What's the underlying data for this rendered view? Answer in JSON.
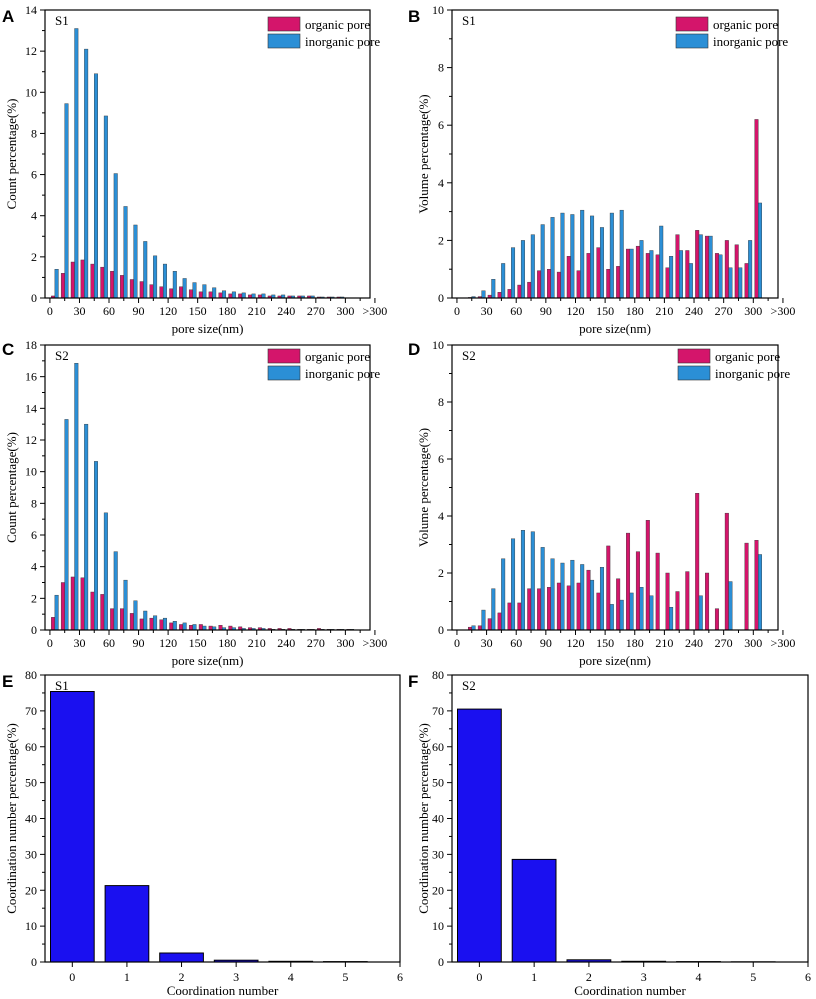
{
  "chart_data": [
    {
      "type": "bar",
      "panel_label": "A",
      "sample_label": "S1",
      "xlabel": "pore size(nm)",
      "ylabel": "Count percentage(%)",
      "ylim": [
        0,
        14
      ],
      "yticks": [
        0,
        2,
        4,
        6,
        8,
        10,
        12,
        14
      ],
      "xticks": [
        "0",
        "30",
        "60",
        "90",
        "120",
        "150",
        "180",
        "210",
        "240",
        "270",
        "300",
        ">300"
      ],
      "x": [
        5,
        15,
        25,
        35,
        45,
        55,
        65,
        75,
        85,
        95,
        105,
        115,
        125,
        135,
        145,
        155,
        165,
        175,
        185,
        195,
        205,
        215,
        225,
        235,
        245,
        255,
        265,
        275,
        285,
        295
      ],
      "legend_position": "top-right",
      "series": [
        {
          "name": "organic pore",
          "color": "#d4156b",
          "values": [
            0.1,
            1.2,
            1.75,
            1.85,
            1.65,
            1.5,
            1.3,
            1.1,
            0.9,
            0.8,
            0.65,
            0.55,
            0.45,
            0.55,
            0.4,
            0.3,
            0.3,
            0.25,
            0.2,
            0.2,
            0.15,
            0.15,
            0.1,
            0.1,
            0.1,
            0.1,
            0.1,
            0.05,
            0.05,
            0.05
          ]
        },
        {
          "name": "inorganic pore",
          "color": "#2b8fd6",
          "values": [
            1.4,
            9.45,
            13.1,
            12.1,
            10.9,
            8.85,
            6.05,
            4.45,
            3.55,
            2.75,
            2.05,
            1.65,
            1.3,
            0.95,
            0.75,
            0.65,
            0.5,
            0.35,
            0.3,
            0.25,
            0.2,
            0.2,
            0.15,
            0.15,
            0.1,
            0.1,
            0.1,
            0.05,
            0.05,
            0.05
          ]
        }
      ]
    },
    {
      "type": "bar",
      "panel_label": "B",
      "sample_label": "S1",
      "xlabel": "pore size(nm)",
      "ylabel": "Volume percentage(%)",
      "ylim": [
        0,
        10
      ],
      "yticks": [
        0,
        2,
        4,
        6,
        8,
        10
      ],
      "xticks": [
        "0",
        "30",
        "60",
        "90",
        "120",
        "150",
        "180",
        "210",
        "240",
        "270",
        "300",
        ">300"
      ],
      "x": [
        5,
        15,
        25,
        35,
        45,
        55,
        65,
        75,
        85,
        95,
        105,
        115,
        125,
        135,
        145,
        155,
        165,
        175,
        185,
        195,
        205,
        215,
        225,
        235,
        245,
        255,
        265,
        275,
        285,
        295,
        305
      ],
      "legend_position": "top-right",
      "series": [
        {
          "name": "organic pore",
          "color": "#d4156b",
          "values": [
            0,
            0.02,
            0.05,
            0.1,
            0.2,
            0.3,
            0.45,
            0.55,
            0.95,
            1.0,
            0.9,
            1.45,
            0.95,
            1.55,
            1.75,
            1.0,
            1.1,
            1.7,
            1.8,
            1.55,
            1.5,
            1.05,
            2.2,
            1.65,
            2.35,
            2.15,
            1.55,
            2.0,
            1.85,
            1.2,
            6.2
          ]
        },
        {
          "name": "inorganic pore",
          "color": "#2b8fd6",
          "values": [
            0,
            0.05,
            0.25,
            0.65,
            1.2,
            1.75,
            2.0,
            2.2,
            2.55,
            2.8,
            2.95,
            2.9,
            3.05,
            2.85,
            2.45,
            2.95,
            3.05,
            1.7,
            2.0,
            1.65,
            2.5,
            1.45,
            1.65,
            1.2,
            2.2,
            2.15,
            1.5,
            1.05,
            1.05,
            2.0,
            3.3
          ]
        }
      ]
    },
    {
      "type": "bar",
      "panel_label": "C",
      "sample_label": "S2",
      "xlabel": "pore size(nm)",
      "ylabel": "Count percentage(%)",
      "ylim": [
        0,
        18
      ],
      "yticks": [
        0,
        2,
        4,
        6,
        8,
        10,
        12,
        14,
        16,
        18
      ],
      "xticks": [
        "0",
        "30",
        "60",
        "90",
        "120",
        "150",
        "180",
        "210",
        "240",
        "270",
        "300",
        ">300"
      ],
      "x": [
        5,
        15,
        25,
        35,
        45,
        55,
        65,
        75,
        85,
        95,
        105,
        115,
        125,
        135,
        145,
        155,
        165,
        175,
        185,
        195,
        205,
        215,
        225,
        235,
        245,
        255,
        265,
        275,
        285,
        295,
        305
      ],
      "legend_position": "top-right",
      "series": [
        {
          "name": "organic pore",
          "color": "#d4156b",
          "values": [
            0.8,
            3.0,
            3.35,
            3.3,
            2.4,
            2.25,
            1.35,
            1.35,
            1.05,
            0.7,
            0.75,
            0.65,
            0.45,
            0.35,
            0.3,
            0.35,
            0.25,
            0.3,
            0.25,
            0.2,
            0.15,
            0.15,
            0.1,
            0.1,
            0.1,
            0.05,
            0.05,
            0.1,
            0.05,
            0.05,
            0.05
          ]
        },
        {
          "name": "inorganic pore",
          "color": "#2b8fd6",
          "values": [
            2.2,
            13.3,
            16.85,
            13.0,
            10.65,
            7.4,
            4.95,
            3.15,
            1.85,
            1.2,
            0.9,
            0.75,
            0.55,
            0.45,
            0.35,
            0.25,
            0.2,
            0.15,
            0.15,
            0.1,
            0.1,
            0.1,
            0.05,
            0.05,
            0.05,
            0.05,
            0.05,
            0.05,
            0.05,
            0.05,
            0.05
          ]
        }
      ]
    },
    {
      "type": "bar",
      "panel_label": "D",
      "sample_label": "S2",
      "xlabel": "pore size(nm)",
      "ylabel": "Volume percentage(%)",
      "ylim": [
        0,
        10
      ],
      "yticks": [
        0,
        2,
        4,
        6,
        8,
        10
      ],
      "xticks": [
        "0",
        "30",
        "60",
        "90",
        "120",
        "150",
        "180",
        "210",
        "240",
        "270",
        "300",
        ">300"
      ],
      "x": [
        5,
        15,
        25,
        35,
        45,
        55,
        65,
        75,
        85,
        95,
        105,
        115,
        125,
        135,
        145,
        155,
        165,
        175,
        185,
        195,
        205,
        215,
        225,
        235,
        245,
        255,
        265,
        275,
        285,
        295,
        305
      ],
      "legend_position": "top-right",
      "series": [
        {
          "name": "organic pore",
          "color": "#d4156b",
          "values": [
            0,
            0.1,
            0.15,
            0.4,
            0.6,
            0.95,
            0.95,
            1.45,
            1.45,
            1.5,
            1.65,
            1.55,
            1.65,
            2.1,
            1.3,
            2.95,
            1.8,
            3.4,
            2.75,
            3.85,
            2.7,
            2.0,
            1.35,
            2.05,
            4.8,
            2.0,
            0.75,
            4.1,
            0,
            3.05,
            3.15
          ]
        },
        {
          "name": "inorganic pore",
          "color": "#2b8fd6",
          "values": [
            0,
            0.15,
            0.7,
            1.45,
            2.5,
            3.2,
            3.5,
            3.45,
            2.9,
            2.5,
            2.35,
            2.45,
            2.3,
            1.75,
            2.2,
            0.9,
            1.05,
            1.3,
            1.5,
            1.2,
            0,
            0.8,
            0,
            0,
            1.2,
            0,
            0,
            1.7,
            0,
            0,
            2.65
          ]
        }
      ]
    },
    {
      "type": "bar",
      "panel_label": "E",
      "sample_label": "S1",
      "xlabel": "Coordination number",
      "ylabel": "Coordination number percentage(%)",
      "ylim": [
        0,
        80
      ],
      "yticks": [
        0,
        10,
        20,
        30,
        40,
        50,
        60,
        70,
        80
      ],
      "xlim": [
        -0.5,
        6
      ],
      "xticks": [
        "0",
        "1",
        "2",
        "3",
        "4",
        "5",
        "6"
      ],
      "categories": [
        "0",
        "1",
        "2",
        "3",
        "4",
        "5"
      ],
      "series": [
        {
          "name": "S1",
          "color": "#1a10f0",
          "values": [
            75.4,
            21.3,
            2.5,
            0.5,
            0.2,
            0.1
          ]
        }
      ]
    },
    {
      "type": "bar",
      "panel_label": "F",
      "sample_label": "S2",
      "xlabel": "Coordination number",
      "ylabel": "Coordination number percentage(%)",
      "ylim": [
        0,
        80
      ],
      "yticks": [
        0,
        10,
        20,
        30,
        40,
        50,
        60,
        70,
        80
      ],
      "xlim": [
        -0.5,
        6
      ],
      "xticks": [
        "0",
        "1",
        "2",
        "3",
        "4",
        "5",
        "6"
      ],
      "categories": [
        "0",
        "1",
        "2",
        "3",
        "4",
        "5"
      ],
      "series": [
        {
          "name": "S2",
          "color": "#1a10f0",
          "values": [
            70.5,
            28.6,
            0.6,
            0.2,
            0.1,
            0.05
          ]
        }
      ]
    }
  ]
}
